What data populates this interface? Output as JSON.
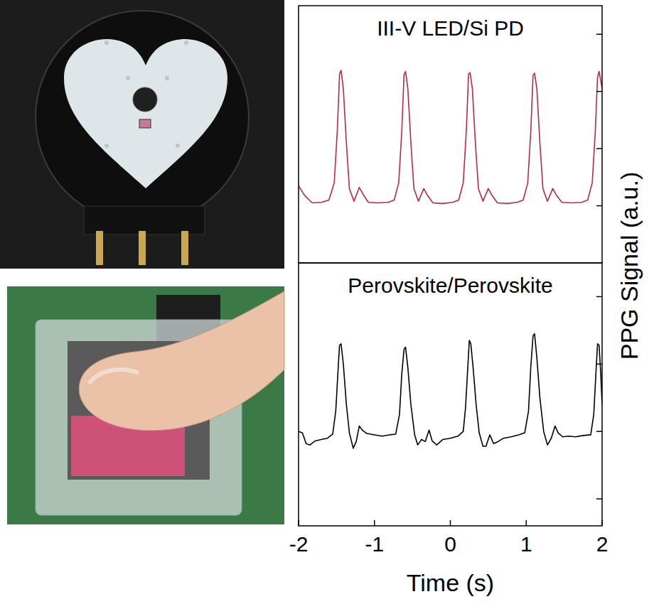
{
  "chart_data": [
    {
      "type": "line",
      "title": "III-V LED/Si PD",
      "y_label": "PPG Signal (a.u.)",
      "x": [
        -2.0,
        -1.92,
        -1.82,
        -1.7,
        -1.6,
        -1.53,
        -1.49,
        -1.46,
        -1.44,
        -1.41,
        -1.37,
        -1.33,
        -1.27,
        -1.2,
        -1.15,
        -1.08,
        -0.95,
        -0.82,
        -0.74,
        -0.68,
        -0.64,
        -0.61,
        -0.59,
        -0.56,
        -0.52,
        -0.48,
        -0.42,
        -0.35,
        -0.3,
        -0.23,
        -0.1,
        0.03,
        0.11,
        0.17,
        0.21,
        0.24,
        0.26,
        0.29,
        0.33,
        0.37,
        0.43,
        0.5,
        0.55,
        0.62,
        0.75,
        0.88,
        0.96,
        1.02,
        1.06,
        1.09,
        1.11,
        1.14,
        1.18,
        1.22,
        1.28,
        1.35,
        1.4,
        1.47,
        1.6,
        1.73,
        1.81,
        1.87,
        1.91,
        1.94,
        1.96,
        1.98,
        2.0
      ],
      "series": [
        {
          "color": "#c0283c",
          "values": [
            1.35,
            1.18,
            1.05,
            1.06,
            1.1,
            1.4,
            2.3,
            3.3,
            3.37,
            3.05,
            2.1,
            1.3,
            1.08,
            1.32,
            1.2,
            1.06,
            1.05,
            1.06,
            1.1,
            1.4,
            2.3,
            3.3,
            3.35,
            3.05,
            2.1,
            1.3,
            1.08,
            1.3,
            1.18,
            1.05,
            1.04,
            1.06,
            1.1,
            1.4,
            2.3,
            3.3,
            3.33,
            3.05,
            2.1,
            1.3,
            1.08,
            1.3,
            1.18,
            1.05,
            1.04,
            1.06,
            1.1,
            1.4,
            2.3,
            3.28,
            3.32,
            3.05,
            2.1,
            1.3,
            1.08,
            1.3,
            1.18,
            1.06,
            1.05,
            1.06,
            1.1,
            1.4,
            2.3,
            3.25,
            3.35,
            3.2,
            3.05
          ]
        }
      ],
      "xlim": [
        -2,
        2
      ],
      "ylim": [
        0,
        4.5
      ],
      "yticks": [
        1,
        2,
        3,
        4
      ],
      "tick_labels": false
    },
    {
      "type": "line",
      "title": "Perovskite/Perovskite",
      "x_label": "Time (s)",
      "x": [
        -2.0,
        -1.95,
        -1.9,
        -1.85,
        -1.78,
        -1.7,
        -1.62,
        -1.55,
        -1.51,
        -1.48,
        -1.46,
        -1.44,
        -1.41,
        -1.37,
        -1.33,
        -1.28,
        -1.24,
        -1.2,
        -1.16,
        -1.1,
        -1.0,
        -0.9,
        -0.8,
        -0.72,
        -0.67,
        -0.64,
        -0.61,
        -0.59,
        -0.56,
        -0.52,
        -0.47,
        -0.43,
        -0.38,
        -0.33,
        -0.28,
        -0.24,
        -0.18,
        -0.1,
        0.0,
        0.1,
        0.17,
        0.2,
        0.23,
        0.25,
        0.27,
        0.3,
        0.34,
        0.38,
        0.43,
        0.47,
        0.52,
        0.57,
        0.63,
        0.7,
        0.8,
        0.9,
        0.98,
        1.03,
        1.06,
        1.09,
        1.11,
        1.14,
        1.18,
        1.23,
        1.28,
        1.33,
        1.38,
        1.42,
        1.48,
        1.56,
        1.65,
        1.75,
        1.85,
        1.89,
        1.92,
        1.94,
        1.96,
        1.98,
        2.0
      ],
      "series": [
        {
          "color": "#000000",
          "values": [
            2.0,
            1.98,
            1.82,
            1.8,
            1.86,
            1.88,
            1.9,
            1.96,
            2.3,
            2.9,
            3.28,
            3.3,
            3.0,
            2.4,
            1.98,
            1.75,
            1.85,
            2.08,
            2.02,
            1.97,
            1.95,
            1.93,
            1.95,
            1.96,
            2.25,
            2.85,
            3.22,
            3.25,
            2.95,
            2.4,
            1.95,
            1.8,
            1.88,
            1.85,
            2.02,
            1.86,
            1.8,
            1.88,
            1.9,
            1.93,
            2.0,
            2.35,
            2.95,
            3.35,
            3.3,
            2.95,
            2.4,
            1.98,
            1.78,
            1.78,
            1.95,
            1.82,
            1.85,
            1.9,
            1.92,
            1.95,
            1.98,
            2.3,
            2.95,
            3.42,
            3.45,
            3.1,
            2.5,
            2.0,
            1.8,
            1.9,
            2.08,
            1.98,
            1.92,
            1.93,
            1.92,
            1.94,
            1.95,
            2.25,
            2.9,
            3.3,
            3.28,
            2.9,
            2.4
          ]
        }
      ],
      "xlim": [
        -2,
        2
      ],
      "xticks": [
        -2,
        -1,
        0,
        1,
        2
      ],
      "ylim": [
        0.6,
        4.5
      ],
      "yticks": [
        1,
        2,
        3,
        4
      ],
      "tick_labels": "x"
    }
  ]
}
